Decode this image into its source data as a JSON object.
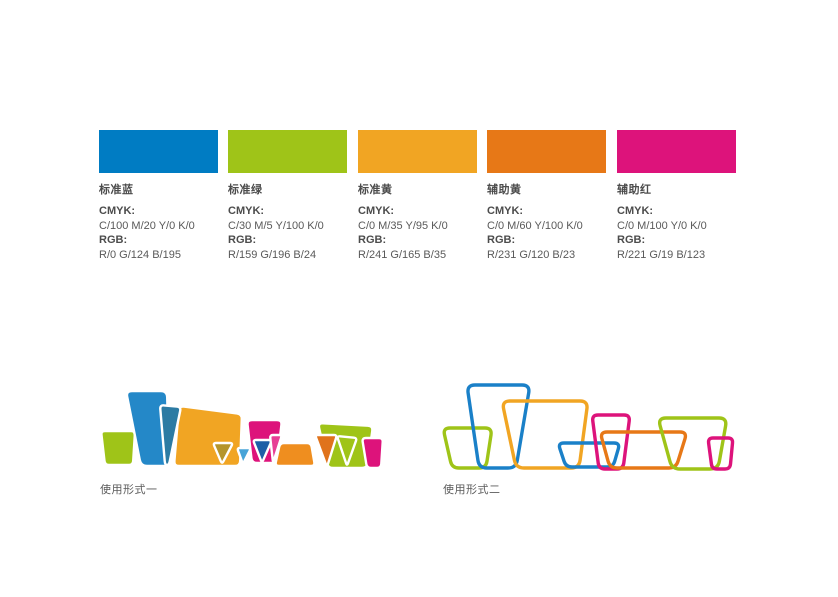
{
  "document": {
    "background": "#FFFFFF"
  },
  "palette": {
    "cmyk_label": "CMYK:",
    "rgb_label": "RGB:",
    "colors": [
      {
        "name": "标准蓝",
        "hex": "#007CC3",
        "cmyk": "C/100  M/20  Y/0  K/0",
        "rgb": "R/0  G/124  B/195"
      },
      {
        "name": "标准绿",
        "hex": "#9FC418",
        "cmyk": "C/30  M/5  Y/100  K/0",
        "rgb": "R/159  G/196  B/24"
      },
      {
        "name": "标准黄",
        "hex": "#F1A523",
        "cmyk": "C/0  M/35  Y/95  K/0",
        "rgb": "R/241  G/165  B/35"
      },
      {
        "name": "辅助黄",
        "hex": "#E77817",
        "cmyk": "C/0  M/60  Y/100  K/0",
        "rgb": "R/231  G/120  B/23"
      },
      {
        "name": "辅助红",
        "hex": "#DD137B",
        "cmyk": "C/0  M/100  Y/0  K/0",
        "rgb": "R/221  G/19  B/123"
      }
    ]
  },
  "usage_forms": [
    {
      "label": "使用形式一",
      "style": "filled-logo"
    },
    {
      "label": "使用形式二",
      "style": "outline-logo"
    }
  ],
  "brand_colors": {
    "standard_blue": "#007CC3",
    "standard_green": "#9FC418",
    "standard_yellow": "#F1A523",
    "auxiliary_yellow": "#E77817",
    "auxiliary_red": "#DD137B"
  }
}
